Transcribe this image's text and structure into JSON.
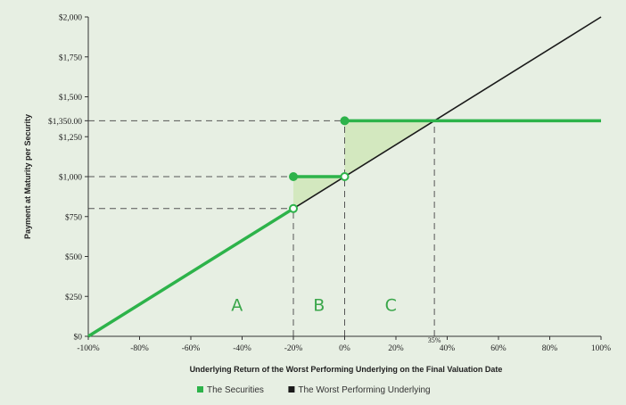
{
  "chart_data": {
    "type": "line",
    "xlabel": "Underlying Return of the Worst Performing Underlying on the Final Valuation Date",
    "ylabel": "Payment at Maturity per Security",
    "xlim": [
      -100,
      100
    ],
    "ylim": [
      0,
      2000
    ],
    "x_ticks": [
      -100,
      -80,
      -60,
      -40,
      -20,
      0,
      20,
      40,
      60,
      80,
      100
    ],
    "x_tick_labels": [
      "-100%",
      "-80%",
      "-60%",
      "-40%",
      "-20%",
      "0%",
      "20%",
      "40%",
      "60%",
      "80%",
      "100%"
    ],
    "y_ticks": [
      0,
      250,
      500,
      750,
      1000,
      1250,
      1350,
      1500,
      1750,
      2000
    ],
    "y_tick_labels": [
      "$0",
      "$250",
      "$500",
      "$750",
      "$1,000",
      "$1,250",
      "$1,350.00",
      "$1,500",
      "$1,750",
      "$2,000"
    ],
    "grid": false,
    "legend_position": "bottom",
    "series": [
      {
        "name": "The Securities",
        "color": "#2db34a",
        "segments": [
          [
            {
              "x": -100,
              "y": 0
            },
            {
              "x": -20,
              "y": 800
            }
          ],
          [
            {
              "x": -20,
              "y": 1000
            },
            {
              "x": 0,
              "y": 1000
            }
          ],
          [
            {
              "x": 0,
              "y": 1350
            },
            {
              "x": 100,
              "y": 1350
            }
          ]
        ]
      },
      {
        "name": "The Worst Performing Underlying",
        "color": "#1a1a1a",
        "segments": [
          [
            {
              "x": -100,
              "y": 0
            },
            {
              "x": 100,
              "y": 2000
            }
          ]
        ]
      }
    ],
    "filled_markers": [
      {
        "x": -20,
        "y": 1000
      },
      {
        "x": 0,
        "y": 1350
      }
    ],
    "open_markers": [
      {
        "x": -20,
        "y": 800
      },
      {
        "x": 0,
        "y": 1000
      }
    ],
    "reference_lines": [
      {
        "type": "h",
        "y": 1350,
        "x_to": 35
      },
      {
        "type": "h",
        "y": 1000,
        "x_to": 0
      },
      {
        "type": "h",
        "y": 800,
        "x_to": -20
      },
      {
        "type": "v",
        "x": -20,
        "y_to": 800
      },
      {
        "type": "v",
        "x": 0,
        "y_to": 1350
      },
      {
        "type": "v",
        "x": 35,
        "y_to": 1350
      }
    ],
    "shaded_regions": [
      [
        {
          "x": -20,
          "y": 800
        },
        {
          "x": -20,
          "y": 1000
        },
        {
          "x": 0,
          "y": 1000
        }
      ],
      [
        {
          "x": 0,
          "y": 1000
        },
        {
          "x": 0,
          "y": 1350
        },
        {
          "x": 35,
          "y": 1350
        }
      ]
    ],
    "region_labels": [
      {
        "text": "A",
        "x": -42,
        "y": 160
      },
      {
        "text": "B",
        "x": -10,
        "y": 160
      },
      {
        "text": "C",
        "x": 18,
        "y": 160
      }
    ],
    "annotations": [
      {
        "text": "35%",
        "x": 35
      }
    ]
  }
}
